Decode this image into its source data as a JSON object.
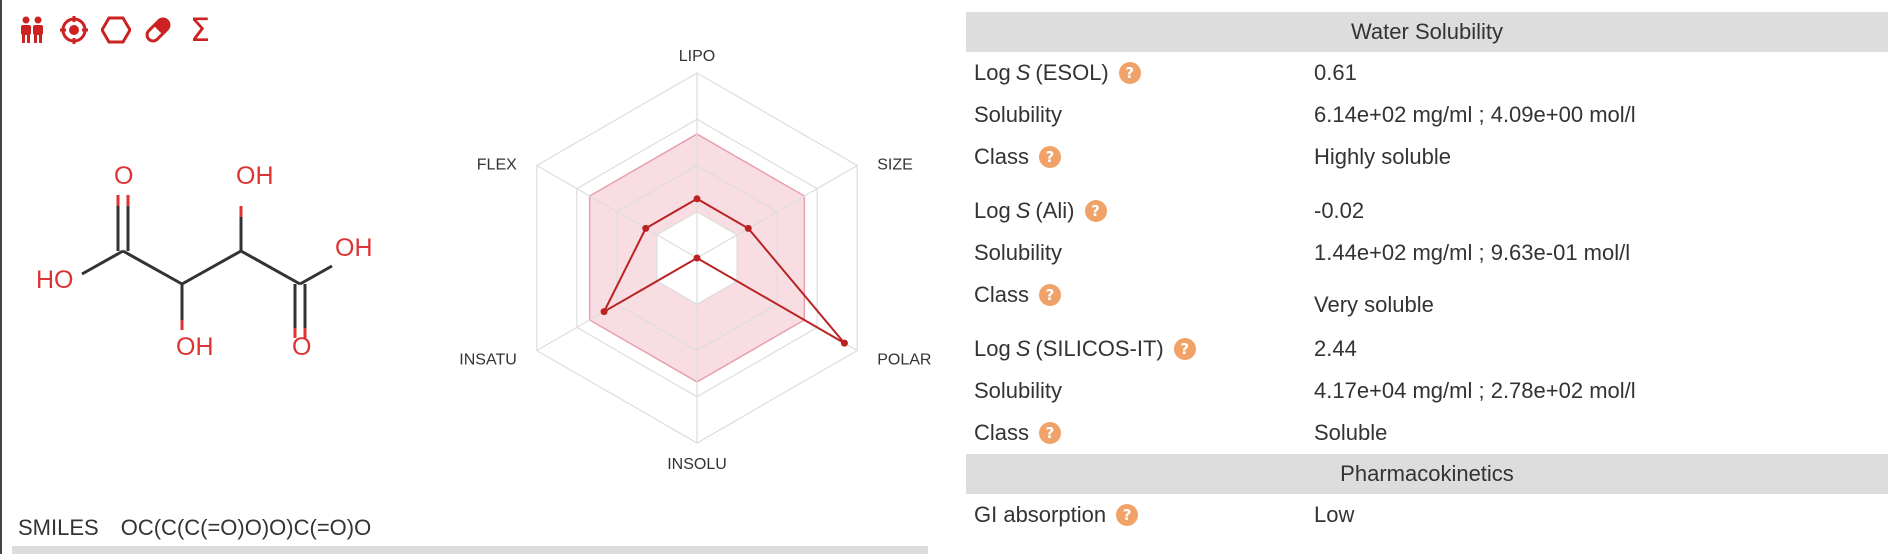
{
  "toolbar": {
    "icons": [
      "people-icon",
      "target-icon",
      "hexagon-icon",
      "pill-icon",
      "sigma-icon"
    ],
    "accent_color": "#cc2222"
  },
  "molecule": {
    "atom_labels": [
      "O",
      "OH",
      "HO",
      "OH",
      "OH",
      "O"
    ],
    "atom_color": "#dd3333",
    "bond_color": "#333333"
  },
  "radar": {
    "axes": [
      "LIPO",
      "SIZE",
      "POLAR",
      "INSOLU",
      "INSATU",
      "FLEX"
    ],
    "values": [
      0.32,
      0.32,
      0.92,
      0.0,
      0.58,
      0.32
    ],
    "fill_color": "#f4c8d0",
    "line_color": "#bb2222"
  },
  "smiles": {
    "label": "SMILES",
    "value": "OC(C(C(=O)O)O)C(=O)O"
  },
  "water_solubility": {
    "header": "Water Solubility",
    "esol": {
      "label_prefix": "Log",
      "label_italic": "S",
      "label_suffix": "(ESOL)",
      "value": "0.61",
      "solubility_label": "Solubility",
      "solubility_value": "6.14e+02 mg/ml ; 4.09e+00 mol/l",
      "class_label": "Class",
      "class_value": "Highly soluble"
    },
    "ali": {
      "label_prefix": "Log",
      "label_italic": "S",
      "label_suffix": "(Ali)",
      "value": "-0.02",
      "solubility_label": "Solubility",
      "solubility_value": "1.44e+02 mg/ml ; 9.63e-01 mol/l",
      "class_label": "Class",
      "class_value": "Very soluble"
    },
    "silicos": {
      "label_prefix": "Log",
      "label_italic": "S",
      "label_suffix": "(SILICOS-IT)",
      "value": "2.44",
      "solubility_label": "Solubility",
      "solubility_value": "4.17e+04 mg/ml ; 2.78e+02 mol/l",
      "class_label": "Class",
      "class_value": "Soluble"
    }
  },
  "pharmacokinetics": {
    "header": "Pharmacokinetics",
    "gi_label": "GI absorption",
    "gi_value": "Low"
  },
  "help_glyph": "?",
  "help_color": "#f0a268"
}
